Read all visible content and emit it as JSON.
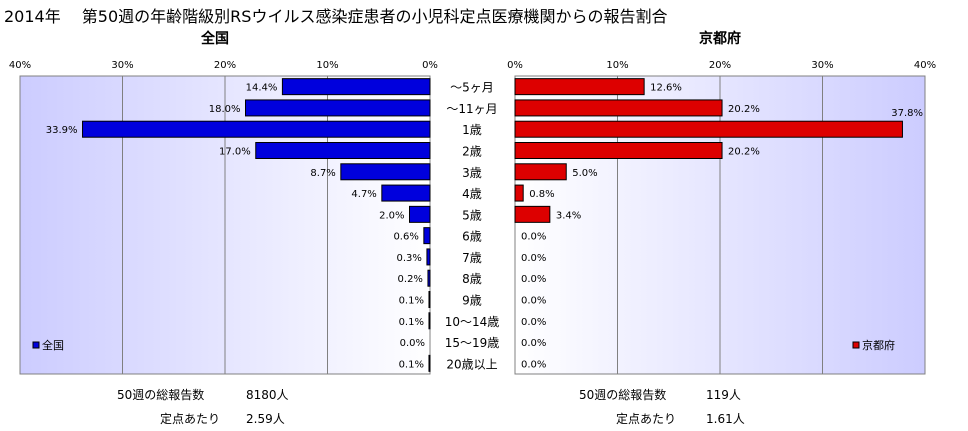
{
  "title": "2014年　 第50週の年齢階級別RSウイルス感染症患者の小児科定点医療機関からの報告割合",
  "chart_data": [
    {
      "type": "bar",
      "orientation": "horizontal",
      "direction": "right-to-left",
      "title": "全国",
      "legend": "全国",
      "legend_position": "bottom-left",
      "color": "#0000dd",
      "xlim": [
        0,
        40
      ],
      "x_ticks": [
        "40%",
        "30%",
        "20%",
        "10%",
        "0%"
      ],
      "grid": true,
      "categories": [
        "～5ヶ月",
        "～11ヶ月",
        "1歳",
        "2歳",
        "3歳",
        "4歳",
        "5歳",
        "6歳",
        "7歳",
        "8歳",
        "9歳",
        "10～14歳",
        "15～19歳",
        "20歳以上"
      ],
      "values": [
        14.4,
        18.0,
        33.9,
        17.0,
        8.7,
        4.7,
        2.0,
        0.6,
        0.3,
        0.2,
        0.1,
        0.1,
        0.0,
        0.1
      ],
      "labels": [
        "14.4%",
        "18.0%",
        "33.9%",
        "17.0%",
        "8.7%",
        "4.7%",
        "2.0%",
        "0.6%",
        "0.3%",
        "0.2%",
        "0.1%",
        "0.1%",
        "0.0%",
        "0.1%"
      ]
    },
    {
      "type": "bar",
      "orientation": "horizontal",
      "direction": "left-to-right",
      "title": "京都府",
      "legend": "京都府",
      "legend_position": "bottom-right",
      "color": "#dd0000",
      "xlim": [
        0,
        40
      ],
      "x_ticks": [
        "0%",
        "10%",
        "20%",
        "30%",
        "40%"
      ],
      "grid": true,
      "categories": [
        "～5ヶ月",
        "～11ヶ月",
        "1歳",
        "2歳",
        "3歳",
        "4歳",
        "5歳",
        "6歳",
        "7歳",
        "8歳",
        "9歳",
        "10～14歳",
        "15～19歳",
        "20歳以上"
      ],
      "values": [
        12.6,
        20.2,
        37.8,
        20.2,
        5.0,
        0.8,
        3.4,
        0.0,
        0.0,
        0.0,
        0.0,
        0.0,
        0.0,
        0.0
      ],
      "labels": [
        "12.6%",
        "20.2%",
        "37.8%",
        "20.2%",
        "5.0%",
        "0.8%",
        "3.4%",
        "0.0%",
        "0.0%",
        "0.0%",
        "0.0%",
        "0.0%",
        "0.0%",
        "0.0%"
      ]
    }
  ],
  "summary": {
    "national": {
      "total_label": "50週の総報告数",
      "total_value": "8180人",
      "per_site_label": "定点あたり",
      "per_site_value": "2.59人"
    },
    "kyoto": {
      "total_label": "50週の総報告数",
      "total_value": "119人",
      "per_site_label": "定点あたり",
      "per_site_value": "1.61人"
    }
  }
}
